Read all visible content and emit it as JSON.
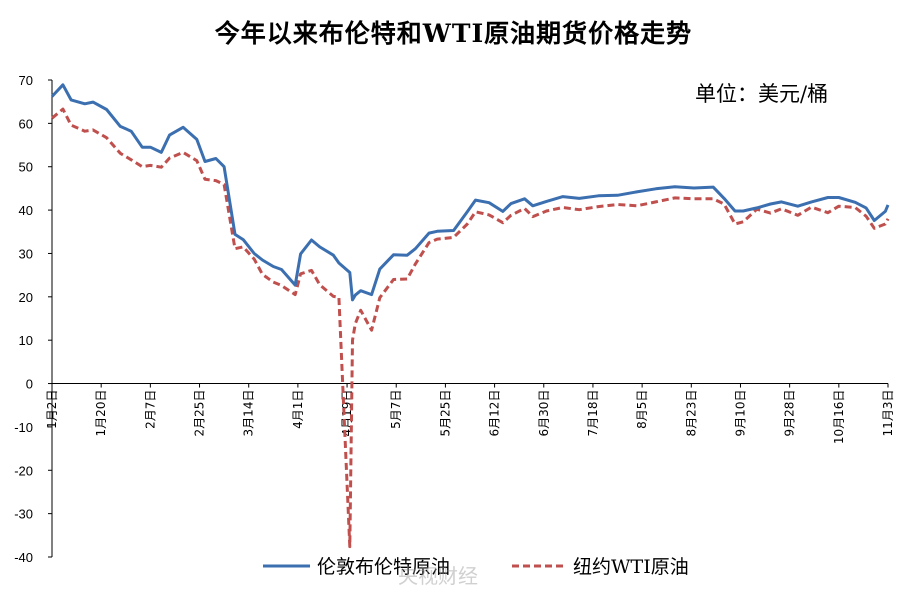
{
  "page": {
    "title": "今年以来布伦特和WTI原油期货价格走势",
    "unit": "单位：美元/桶",
    "watermark": "央视财经"
  },
  "chart_data": {
    "type": "line",
    "title": "今年以来布伦特和WTI原油期货价格走势",
    "ylim": [
      -40,
      70
    ],
    "yticks": [
      70,
      60,
      50,
      40,
      30,
      20,
      10,
      0,
      -10,
      -20,
      -30,
      -40
    ],
    "x_tick_labels": [
      "1月2日",
      "1月20日",
      "2月7日",
      "2月25日",
      "3月14日",
      "4月1日",
      "4月19日",
      "5月7日",
      "5月25日",
      "6月12日",
      "6月30日",
      "7月18日",
      "8月5日",
      "8月23日",
      "9月10日",
      "9月28日",
      "10月16日",
      "11月3日"
    ],
    "legend_position": "bottom",
    "colors": {
      "brent": "#3b6fb0",
      "wti": "#c0504d"
    },
    "x": [
      "2020-01-02",
      "2020-01-06",
      "2020-01-09",
      "2020-01-14",
      "2020-01-17",
      "2020-01-22",
      "2020-01-27",
      "2020-01-31",
      "2020-02-04",
      "2020-02-07",
      "2020-02-11",
      "2020-02-14",
      "2020-02-19",
      "2020-02-24",
      "2020-02-27",
      "2020-03-02",
      "2020-03-05",
      "2020-03-09",
      "2020-03-12",
      "2020-03-16",
      "2020-03-19",
      "2020-03-23",
      "2020-03-26",
      "2020-03-31",
      "2020-04-02",
      "2020-04-06",
      "2020-04-09",
      "2020-04-14",
      "2020-04-16",
      "2020-04-20",
      "2020-04-21",
      "2020-04-22",
      "2020-04-24",
      "2020-04-28",
      "2020-05-01",
      "2020-05-06",
      "2020-05-11",
      "2020-05-14",
      "2020-05-19",
      "2020-05-22",
      "2020-05-28",
      "2020-06-02",
      "2020-06-05",
      "2020-06-10",
      "2020-06-15",
      "2020-06-18",
      "2020-06-23",
      "2020-06-26",
      "2020-07-01",
      "2020-07-07",
      "2020-07-13",
      "2020-07-20",
      "2020-07-27",
      "2020-08-03",
      "2020-08-10",
      "2020-08-17",
      "2020-08-24",
      "2020-08-31",
      "2020-09-04",
      "2020-09-08",
      "2020-09-11",
      "2020-09-16",
      "2020-09-21",
      "2020-09-25",
      "2020-10-01",
      "2020-10-06",
      "2020-10-12",
      "2020-10-16",
      "2020-10-22",
      "2020-10-26",
      "2020-10-29",
      "2020-11-02",
      "2020-11-03"
    ],
    "series": [
      {
        "name": "伦敦布伦特原油",
        "values": [
          66.2,
          68.9,
          65.4,
          64.5,
          64.9,
          63.2,
          59.3,
          58.2,
          54.5,
          54.5,
          53.3,
          57.3,
          59.1,
          56.3,
          51.2,
          51.9,
          50.0,
          34.4,
          33.2,
          30.0,
          28.5,
          27.0,
          26.3,
          22.7,
          29.9,
          33.1,
          31.5,
          29.6,
          27.8,
          25.6,
          19.3,
          20.4,
          21.4,
          20.5,
          26.4,
          29.7,
          29.6,
          31.1,
          34.7,
          35.1,
          35.3,
          39.6,
          42.3,
          41.7,
          39.7,
          41.5,
          42.6,
          41.0,
          42.0,
          43.1,
          42.7,
          43.3,
          43.4,
          44.2,
          44.9,
          45.4,
          45.1,
          45.3,
          42.7,
          39.8,
          39.8,
          40.5,
          41.4,
          41.9,
          40.9,
          41.9,
          42.9,
          42.9,
          41.8,
          40.5,
          37.6,
          39.7,
          41.2
        ]
      },
      {
        "name": "纽约WTI原油",
        "values": [
          61.2,
          63.3,
          59.6,
          58.2,
          58.5,
          56.7,
          53.1,
          51.6,
          50.0,
          50.3,
          49.9,
          52.0,
          53.3,
          51.4,
          47.1,
          46.8,
          45.9,
          31.1,
          31.5,
          28.7,
          25.2,
          23.4,
          22.6,
          20.5,
          25.3,
          26.1,
          22.8,
          20.1,
          19.9,
          -37.6,
          10.0,
          13.8,
          16.9,
          12.3,
          19.8,
          24.0,
          24.1,
          27.6,
          32.5,
          33.3,
          33.7,
          36.8,
          39.6,
          38.9,
          37.1,
          38.8,
          40.4,
          38.5,
          39.8,
          40.6,
          40.1,
          40.8,
          41.3,
          41.0,
          41.9,
          42.8,
          42.6,
          42.6,
          41.4,
          36.8,
          37.3,
          40.2,
          39.3,
          40.3,
          38.8,
          40.7,
          39.4,
          40.9,
          40.6,
          38.6,
          35.8,
          36.8,
          38.0
        ]
      }
    ]
  }
}
